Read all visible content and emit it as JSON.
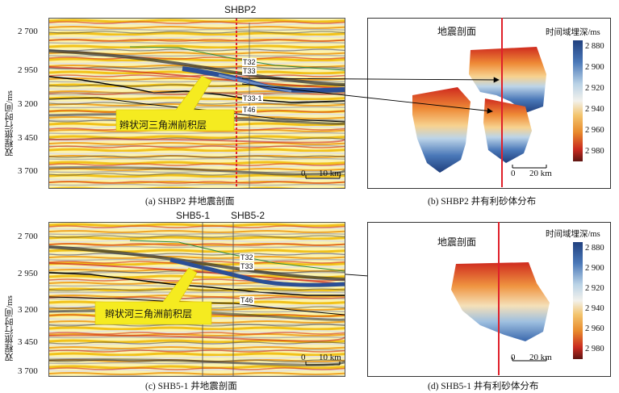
{
  "panels": {
    "a": {
      "well_labels": [
        "SHBP2"
      ],
      "y_axis_label": "双程旅行时间/ms",
      "y_ticks": [
        "2 700",
        "2 950",
        "3 200",
        "3 450",
        "3 700"
      ],
      "horizons": [
        "T32",
        "T33",
        "T33-1",
        "T46"
      ],
      "callout": "辫状河三角洲前积层",
      "scale_zero": "0",
      "scale_len": "10 km",
      "caption": "(a) SHBP2 井地震剖面"
    },
    "b": {
      "title": "地震剖面",
      "colorbar_title": "时间域埋深/ms",
      "colorbar_ticks": [
        "2 880",
        "2 900",
        "2 920",
        "2 940",
        "2 960",
        "2 980"
      ],
      "scale_zero": "0",
      "scale_len": "20 km",
      "caption": "(b) SHBP2 井有利砂体分布"
    },
    "c": {
      "well_labels": [
        "SHB5-1",
        "SHB5-2"
      ],
      "y_axis_label": "双程旅行时间/ms",
      "y_ticks": [
        "2 700",
        "2 950",
        "3 200",
        "3 450",
        "3 700"
      ],
      "horizons": [
        "T32",
        "T33",
        "T46"
      ],
      "callout": "辫状河三角洲前积层",
      "scale_zero": "0",
      "scale_len": "10 km",
      "caption": "(c) SHB5-1 井地震剖面"
    },
    "d": {
      "title": "地震剖面",
      "colorbar_title": "时间域埋深/ms",
      "colorbar_ticks": [
        "2 880",
        "2 900",
        "2 920",
        "2 940",
        "2 960",
        "2 980"
      ],
      "scale_zero": "0",
      "scale_len": "20 km",
      "caption": "(d) SHB5-1 井有利砂体分布"
    }
  },
  "colors": {
    "well_line": "#e0202a",
    "deep_blue": "#2b4f96",
    "red": "#cf2a1e",
    "yellow": "#f7e21a",
    "callout_fill": "#f5eb20"
  }
}
